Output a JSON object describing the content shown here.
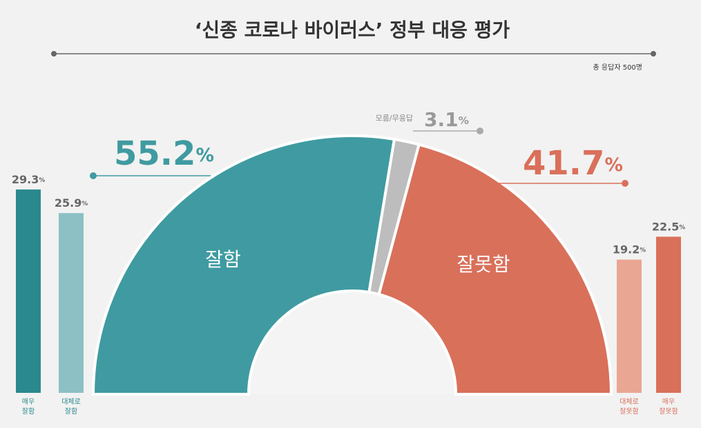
{
  "header": {
    "title": "‘신종 코로나 바이러스’ 정부 대응 평가",
    "note": "총 응답자 500명"
  },
  "chart_data": [
    {
      "type": "semi-donut",
      "categories": [
        "잘함",
        "모름/무응답",
        "잘못함"
      ],
      "values": [
        55.2,
        3.1,
        41.7
      ],
      "value_labels": [
        "55.2%",
        "3.1%",
        "41.7%"
      ],
      "colors": [
        "#3f9ba1",
        "#bdbdbd",
        "#d9705a"
      ]
    },
    {
      "type": "bar",
      "categories": [
        "매우\n잘함",
        "대체로\n잘함",
        "대체로\n잘못함",
        "매우\n잘못함"
      ],
      "values": [
        29.3,
        25.9,
        19.2,
        22.5
      ],
      "value_labels": [
        "29.3%",
        "25.9%",
        "19.2%",
        "22.5%"
      ],
      "colors": [
        "#2a898e",
        "#8cc0c5",
        "#e9a692",
        "#d9705a"
      ]
    }
  ]
}
